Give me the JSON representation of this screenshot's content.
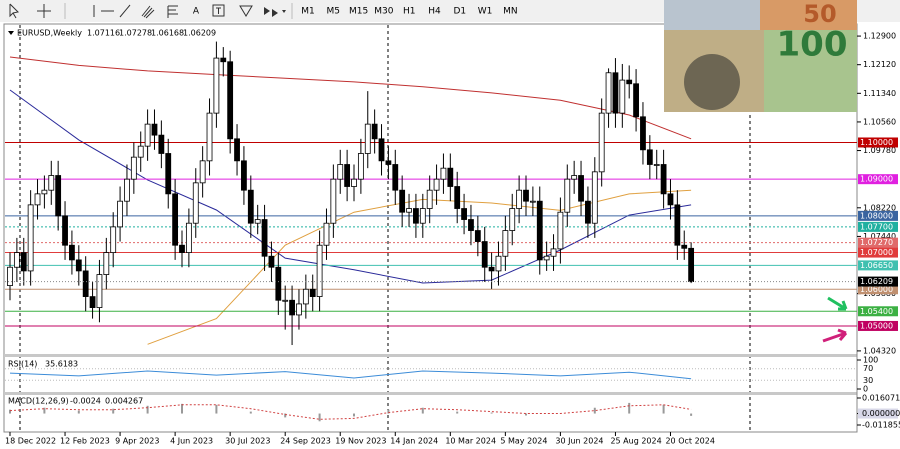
{
  "toolbar": {
    "text_tool": "A",
    "timeframes": [
      "M1",
      "M5",
      "M15",
      "M30",
      "H1",
      "H4",
      "D1",
      "W1",
      "MN"
    ]
  },
  "image": {
    "texts": [
      "100",
      "50"
    ]
  },
  "chart_data": {
    "type": "candlestick",
    "symbol": "EURUSD,Weekly",
    "ylim": [
      1.0429,
      1.1312
    ],
    "yticks": [
      {
        "value": 1.129,
        "label": "1.12900"
      },
      {
        "value": 1.1212,
        "label": "1.12120"
      },
      {
        "value": 1.1134,
        "label": "1.11340"
      },
      {
        "value": 1.1056,
        "label": "1.10560"
      },
      {
        "value": 1.0978,
        "label": "1.09780"
      },
      {
        "value": 1.0822,
        "label": "1.08220"
      },
      {
        "value": 1.0744,
        "label": "1.07440"
      },
      {
        "value": 1.0588,
        "label": "1.05880"
      },
      {
        "value": 1.0432,
        "label": "1.04320"
      }
    ],
    "levels": [
      {
        "value": 1.1,
        "label": "1.10000",
        "color": "#c00000"
      },
      {
        "value": 1.09,
        "label": "1.09000",
        "color": "#e020e0"
      },
      {
        "value": 1.08,
        "label": "1.08000",
        "color": "#3a64a0"
      },
      {
        "value": 1.077,
        "label": "1.07700",
        "color": "#20b0a0"
      },
      {
        "value": 1.0727,
        "label": "1.07270",
        "color": "#e06a6a"
      },
      {
        "value": 1.07,
        "label": "1.07000",
        "color": "#e03c3c"
      },
      {
        "value": 1.0665,
        "label": "1.06650",
        "color": "#40c0b0"
      },
      {
        "value": 1.06,
        "label": "1.06000",
        "color": "#c09070"
      },
      {
        "value": 1.054,
        "label": "1.05400",
        "color": "#3cb043"
      },
      {
        "value": 1.05,
        "label": "1.05000",
        "color": "#c00060"
      }
    ],
    "current_label": "1.06209",
    "dates": [
      "18 Dec 2022",
      "12 Feb 2023",
      "9 Apr 2023",
      "4 Jun 2023",
      "30 Jul 2023",
      "24 Sep 2023",
      "19 Nov 2023",
      "14 Jan 2024",
      "10 Mar 2024",
      "5 May 2024",
      "30 Jun 2024",
      "25 Aug 2024",
      "20 Oct 2024"
    ],
    "candles": [
      [
        1.061,
        1.07,
        1.057,
        1.066
      ],
      [
        1.066,
        1.074,
        1.062,
        1.07
      ],
      [
        1.07,
        1.074,
        1.061,
        1.065
      ],
      [
        1.065,
        1.087,
        1.061,
        1.083
      ],
      [
        1.083,
        1.09,
        1.079,
        1.086
      ],
      [
        1.086,
        1.091,
        1.082,
        1.087
      ],
      [
        1.087,
        1.095,
        1.083,
        1.091
      ],
      [
        1.091,
        1.095,
        1.076,
        1.08
      ],
      [
        1.08,
        1.084,
        1.068,
        1.072
      ],
      [
        1.072,
        1.076,
        1.064,
        1.068
      ],
      [
        1.068,
        1.072,
        1.061,
        1.065
      ],
      [
        1.065,
        1.069,
        1.054,
        1.058
      ],
      [
        1.058,
        1.062,
        1.052,
        1.055
      ],
      [
        1.055,
        1.068,
        1.051,
        1.064
      ],
      [
        1.064,
        1.074,
        1.06,
        1.07
      ],
      [
        1.07,
        1.081,
        1.066,
        1.077
      ],
      [
        1.077,
        1.088,
        1.073,
        1.084
      ],
      [
        1.084,
        1.094,
        1.08,
        1.09
      ],
      [
        1.09,
        1.1,
        1.086,
        1.096
      ],
      [
        1.096,
        1.103,
        1.092,
        1.099
      ],
      [
        1.099,
        1.109,
        1.095,
        1.105
      ],
      [
        1.105,
        1.109,
        1.098,
        1.102
      ],
      [
        1.102,
        1.106,
        1.093,
        1.097
      ],
      [
        1.097,
        1.101,
        1.082,
        1.086
      ],
      [
        1.086,
        1.09,
        1.068,
        1.072
      ],
      [
        1.072,
        1.076,
        1.066,
        1.07
      ],
      [
        1.07,
        1.082,
        1.066,
        1.078
      ],
      [
        1.078,
        1.093,
        1.074,
        1.089
      ],
      [
        1.089,
        1.099,
        1.085,
        1.095
      ],
      [
        1.095,
        1.112,
        1.091,
        1.108
      ],
      [
        1.108,
        1.1275,
        1.104,
        1.123
      ],
      [
        1.123,
        1.126,
        1.118,
        1.122
      ],
      [
        1.122,
        1.125,
        1.097,
        1.101
      ],
      [
        1.101,
        1.105,
        1.091,
        1.095
      ],
      [
        1.095,
        1.099,
        1.083,
        1.087
      ],
      [
        1.087,
        1.091,
        1.074,
        1.078
      ],
      [
        1.078,
        1.083,
        1.075,
        1.079
      ],
      [
        1.079,
        1.083,
        1.065,
        1.069
      ],
      [
        1.069,
        1.073,
        1.062,
        1.066
      ],
      [
        1.066,
        1.07,
        1.053,
        1.057
      ],
      [
        1.057,
        1.061,
        1.049,
        1.057
      ],
      [
        1.057,
        1.061,
        1.0448,
        1.053
      ],
      [
        1.053,
        1.06,
        1.049,
        1.056
      ],
      [
        1.056,
        1.064,
        1.052,
        1.06
      ],
      [
        1.06,
        1.064,
        1.054,
        1.058
      ],
      [
        1.058,
        1.076,
        1.054,
        1.072
      ],
      [
        1.072,
        1.082,
        1.068,
        1.078
      ],
      [
        1.078,
        1.094,
        1.074,
        1.09
      ],
      [
        1.09,
        1.098,
        1.086,
        1.094
      ],
      [
        1.094,
        1.098,
        1.084,
        1.088
      ],
      [
        1.088,
        1.094,
        1.084,
        1.09
      ],
      [
        1.09,
        1.101,
        1.086,
        1.097
      ],
      [
        1.097,
        1.114,
        1.093,
        1.105
      ],
      [
        1.105,
        1.109,
        1.097,
        1.101
      ],
      [
        1.101,
        1.105,
        1.091,
        1.095
      ],
      [
        1.095,
        1.099,
        1.09,
        1.094
      ],
      [
        1.094,
        1.098,
        1.083,
        1.087
      ],
      [
        1.087,
        1.091,
        1.077,
        1.081
      ],
      [
        1.081,
        1.086,
        1.077,
        1.082
      ],
      [
        1.082,
        1.086,
        1.074,
        1.078
      ],
      [
        1.078,
        1.086,
        1.074,
        1.082
      ],
      [
        1.082,
        1.091,
        1.078,
        1.087
      ],
      [
        1.087,
        1.094,
        1.083,
        1.09
      ],
      [
        1.09,
        1.097,
        1.086,
        1.093
      ],
      [
        1.093,
        1.097,
        1.084,
        1.088
      ],
      [
        1.088,
        1.092,
        1.078,
        1.082
      ],
      [
        1.082,
        1.086,
        1.075,
        1.079
      ],
      [
        1.079,
        1.083,
        1.072,
        1.076
      ],
      [
        1.076,
        1.08,
        1.069,
        1.073
      ],
      [
        1.073,
        1.077,
        1.062,
        1.066
      ],
      [
        1.066,
        1.07,
        1.0601,
        1.065
      ],
      [
        1.065,
        1.073,
        1.061,
        1.069
      ],
      [
        1.069,
        1.08,
        1.065,
        1.076
      ],
      [
        1.076,
        1.086,
        1.072,
        1.082
      ],
      [
        1.082,
        1.091,
        1.078,
        1.087
      ],
      [
        1.087,
        1.091,
        1.08,
        1.084
      ],
      [
        1.084,
        1.088,
        1.08,
        1.084
      ],
      [
        1.084,
        1.088,
        1.064,
        1.068
      ],
      [
        1.068,
        1.073,
        1.065,
        1.069
      ],
      [
        1.069,
        1.075,
        1.065,
        1.071
      ],
      [
        1.071,
        1.085,
        1.067,
        1.081
      ],
      [
        1.081,
        1.094,
        1.077,
        1.09
      ],
      [
        1.09,
        1.095,
        1.086,
        1.091
      ],
      [
        1.091,
        1.095,
        1.08,
        1.084
      ],
      [
        1.084,
        1.088,
        1.074,
        1.078
      ],
      [
        1.078,
        1.096,
        1.074,
        1.092
      ],
      [
        1.092,
        1.112,
        1.088,
        1.108
      ],
      [
        1.108,
        1.1202,
        1.104,
        1.119
      ],
      [
        1.119,
        1.123,
        1.104,
        1.108
      ],
      [
        1.108,
        1.1214,
        1.104,
        1.117
      ],
      [
        1.117,
        1.121,
        1.112,
        1.116
      ],
      [
        1.116,
        1.12,
        1.103,
        1.107
      ],
      [
        1.107,
        1.111,
        1.094,
        1.098
      ],
      [
        1.098,
        1.102,
        1.09,
        1.094
      ],
      [
        1.094,
        1.098,
        1.09,
        1.094
      ],
      [
        1.094,
        1.098,
        1.082,
        1.086
      ],
      [
        1.086,
        1.09,
        1.079,
        1.083
      ],
      [
        1.083,
        1.087,
        1.068,
        1.072
      ],
      [
        1.072,
        1.076,
        1.068,
        1.07116
      ],
      [
        1.07116,
        1.07278,
        1.06168,
        1.06209
      ]
    ],
    "ma_index": [
      0,
      10,
      20,
      30,
      40,
      50,
      60,
      70,
      80,
      90,
      99
    ],
    "moving_averages": [
      {
        "color": "#c03030",
        "values": [
          1.1233,
          1.121,
          1.1195,
          1.1185,
          1.1175,
          1.1165,
          1.1152,
          1.1135,
          1.1115,
          1.1075,
          1.101
        ]
      },
      {
        "color": "#2a2a9a",
        "values": [
          1.1143,
          1.1007,
          1.0898,
          1.0816,
          1.0685,
          1.0653,
          1.0617,
          1.0625,
          1.0707,
          1.0802,
          1.083
        ]
      },
      {
        "color": "#e0a040",
        "values": [
          null,
          null,
          1.045,
          1.052,
          1.072,
          1.081,
          1.0845,
          1.0835,
          1.0815,
          1.086,
          1.087
        ]
      }
    ],
    "rsi": {
      "label": "RSI(14)",
      "ylim": [
        0,
        100
      ],
      "yticks": [
        100,
        70,
        30,
        0
      ],
      "index": [
        0,
        10,
        20,
        30,
        40,
        50,
        60,
        70,
        80,
        90,
        99
      ],
      "values": [
        55,
        45,
        62,
        48,
        60,
        38,
        62,
        55,
        45,
        58,
        35.6183
      ],
      "color": "#3c8cd8"
    },
    "macd": {
      "label": "MACD(12,26,9)",
      "ylim": [
        -0.011855,
        0.016071
      ],
      "yticks": [
        {
          "value": 0.016071,
          "label": "0.016071"
        },
        {
          "value": 0,
          "label": "0.000000"
        },
        {
          "value": -0.011855,
          "label": "-0.011855"
        }
      ],
      "index": [
        0,
        5,
        10,
        15,
        20,
        25,
        30,
        35,
        40,
        45,
        50,
        55,
        60,
        65,
        70,
        75,
        80,
        85,
        90,
        95,
        99
      ],
      "main": [
        0.004,
        0.006,
        0.003,
        0.005,
        0.008,
        0.01,
        0.009,
        0.002,
        -0.004,
        -0.008,
        -0.003,
        0.004,
        0.006,
        0.002,
        0.001,
        -0.002,
        0,
        0.006,
        0.011,
        0.009,
        -0.0024
      ],
      "signal": [
        0.003,
        0.005,
        0.004,
        0.004,
        0.006,
        0.009,
        0.009,
        0.005,
        -0.001,
        -0.006,
        -0.005,
        0.001,
        0.005,
        0.004,
        0.002,
        0,
        0,
        0.003,
        0.008,
        0.009,
        0.004267
      ]
    }
  }
}
